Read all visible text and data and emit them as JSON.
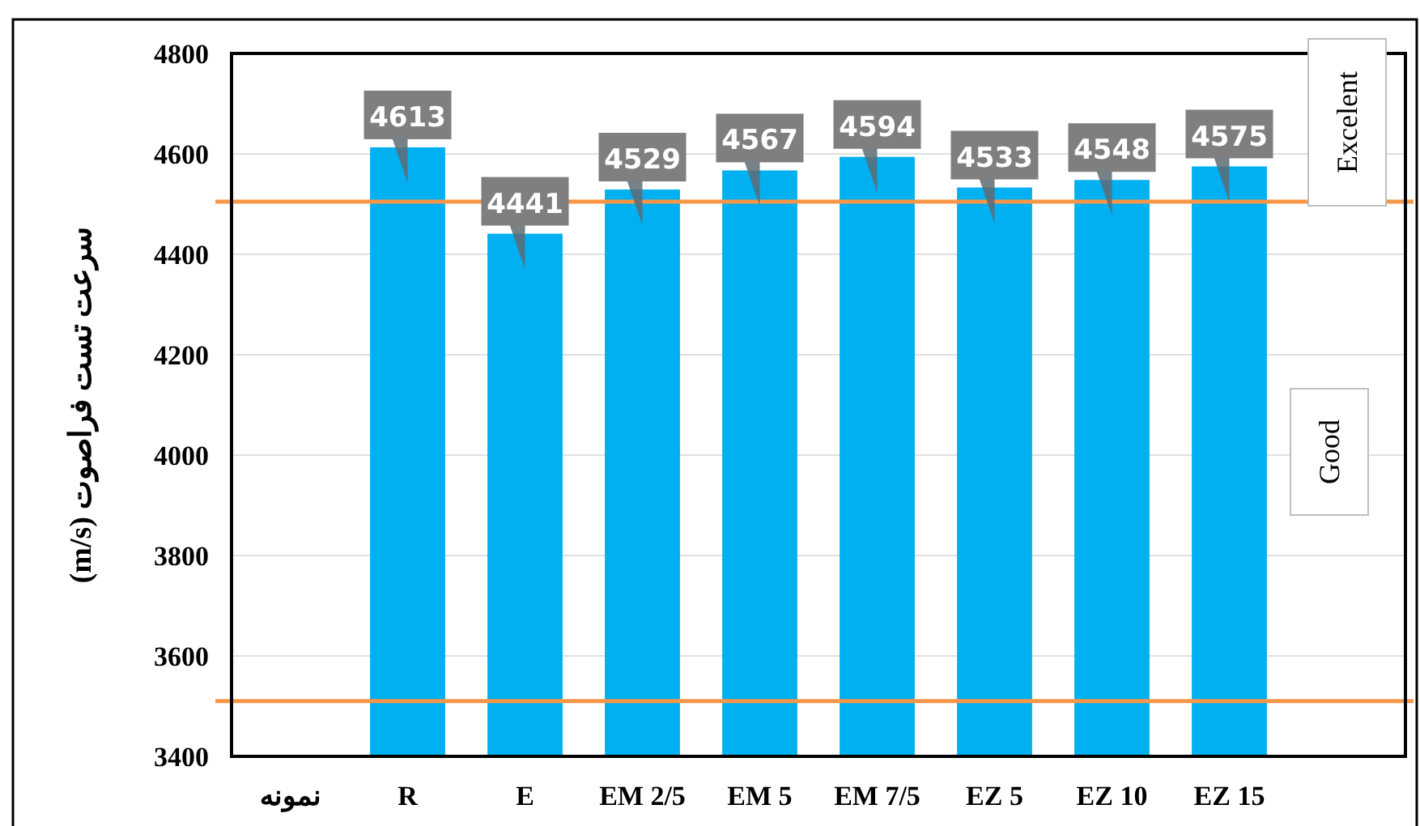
{
  "chart_data": {
    "type": "bar",
    "ylabel": "سرعت تست فراصوت (m/s)",
    "categories": [
      "نمونه",
      "R",
      "E",
      "EM 2/5",
      "EM 5",
      "EM 7/5",
      "EZ 5",
      "EZ 10",
      "EZ 15",
      null
    ],
    "values": [
      null,
      4613,
      4441,
      4529,
      4567,
      4594,
      4533,
      4548,
      4575,
      null
    ],
    "value_labels": [
      null,
      "4613",
      "4441",
      "4529",
      "4567",
      "4594",
      "4533",
      "4548",
      "4575",
      null
    ],
    "color": "#00b0f0",
    "ylim": [
      3400,
      4800
    ],
    "yticks": [
      3400,
      3600,
      3800,
      4000,
      4200,
      4400,
      4600,
      4800
    ],
    "grid": "y",
    "ref_lines": [
      {
        "axis": "y",
        "value": 4505,
        "color": "#f79646"
      },
      {
        "axis": "y",
        "value": 3510,
        "color": "#f79646"
      }
    ],
    "annotations": [
      "Excelent",
      "Good"
    ]
  }
}
